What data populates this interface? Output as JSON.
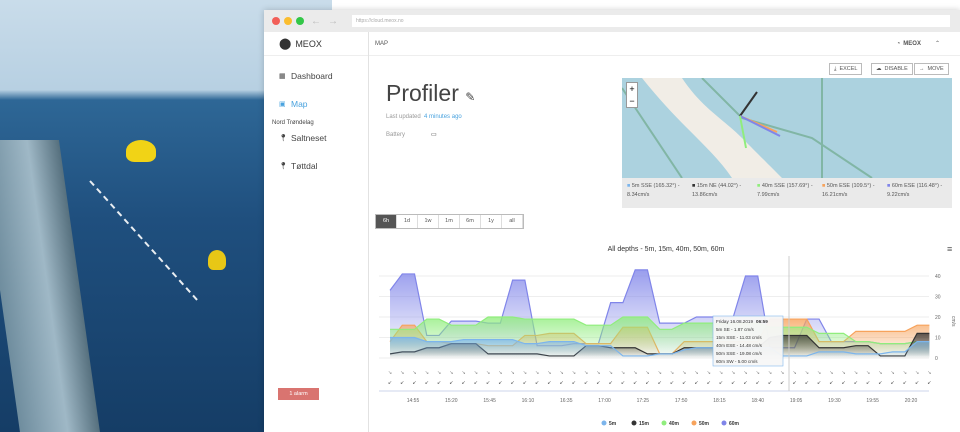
{
  "browser": {
    "url": "https://cloud.meox.no"
  },
  "sidebar": {
    "logo": "MEOX",
    "items": [
      {
        "label": "Dashboard",
        "icon": "grid-icon"
      },
      {
        "label": "Map",
        "icon": "map-icon",
        "active": true
      }
    ],
    "group": "Nord Trøndelag",
    "locations": [
      {
        "label": "Saltneset"
      },
      {
        "label": "Tøttdal"
      }
    ],
    "alarm": "1 alarm"
  },
  "topbar": {
    "breadcrumb": "MAP",
    "user": "MEOX"
  },
  "toolbar": {
    "excel": "EXCEL",
    "disable": "DISABLE",
    "move": "MOVE"
  },
  "device": {
    "title": "Profiler",
    "last_updated_label": "Last updated",
    "last_updated_value": "4 minutes ago",
    "battery_label": "Battery"
  },
  "map_legend": [
    {
      "text": "5m SSE (165.32°) - 8.34cm/s",
      "color": "#7cb5ec"
    },
    {
      "text": "15m NE (44.02°) - 13.86cm/s",
      "color": "#333333"
    },
    {
      "text": "40m SSE (157.69°) - 7.99cm/s",
      "color": "#90ed7d"
    },
    {
      "text": "50m ESE (109.5°) - 16.21cm/s",
      "color": "#f7a35c"
    },
    {
      "text": "60m ESE (116.48°) - 9.22cm/s",
      "color": "#8085e9"
    }
  ],
  "ranges": [
    "6h",
    "1d",
    "1w",
    "1m",
    "6m",
    "1y",
    "all"
  ],
  "chart_data": {
    "type": "line",
    "title": "All depths - 5m, 15m, 40m, 50m, 60m",
    "ylabel": "cm/s",
    "ylim": [
      0,
      45
    ],
    "yticks": [
      0,
      10,
      20,
      30,
      40
    ],
    "xticks": [
      "14:55",
      "15:20",
      "15:45",
      "16:10",
      "16:35",
      "17:00",
      "17:25",
      "17:50",
      "18:15",
      "18:40",
      "19:05",
      "19:30",
      "19:55",
      "20:20"
    ],
    "x": [
      "14:40",
      "14:48",
      "14:56",
      "15:04",
      "15:12",
      "15:20",
      "15:28",
      "15:36",
      "15:44",
      "15:52",
      "16:00",
      "16:08",
      "16:16",
      "16:24",
      "16:32",
      "16:40",
      "16:48",
      "16:56",
      "17:04",
      "17:12",
      "17:20",
      "17:28",
      "17:36",
      "17:44",
      "17:52",
      "18:00",
      "18:08",
      "18:16",
      "18:24",
      "18:32",
      "18:40",
      "18:48",
      "18:56",
      "19:04",
      "19:12",
      "19:20",
      "19:28",
      "19:36",
      "19:44",
      "19:52",
      "20:00",
      "20:08",
      "20:16",
      "20:24",
      "20:32"
    ],
    "series": [
      {
        "name": "5m",
        "color": "#7cb5ec",
        "values": [
          10,
          10,
          10,
          8,
          8,
          8,
          9,
          9,
          9,
          9,
          9,
          7,
          7,
          8,
          8,
          8,
          6,
          6,
          6,
          1,
          1,
          1,
          2,
          2,
          4,
          5,
          5,
          5,
          5,
          5,
          5,
          5,
          1,
          1,
          1,
          3,
          3,
          3,
          2,
          2,
          2,
          3,
          3,
          8,
          8
        ]
      },
      {
        "name": "15m",
        "color": "#333333",
        "values": [
          2,
          3,
          3,
          5,
          5,
          7,
          7,
          7,
          2,
          2,
          2,
          2,
          2,
          1,
          1,
          1,
          6,
          6,
          5,
          5,
          5,
          2,
          2,
          2,
          5,
          5,
          5,
          5,
          5,
          5,
          5,
          10,
          11,
          11,
          11,
          5,
          5,
          5,
          6,
          6,
          1,
          1,
          1,
          12,
          12
        ]
      },
      {
        "name": "40m",
        "color": "#90ed7d",
        "values": [
          14,
          14,
          14,
          19,
          19,
          16,
          16,
          16,
          20,
          20,
          20,
          19,
          19,
          19,
          19,
          19,
          16,
          16,
          16,
          20,
          20,
          20,
          14,
          14,
          17,
          17,
          17,
          17,
          17,
          17,
          17,
          15,
          15,
          15,
          15,
          12,
          12,
          12,
          8,
          8,
          7,
          7,
          7,
          8,
          8
        ]
      },
      {
        "name": "50m",
        "color": "#f7a35c",
        "values": [
          8,
          16,
          16,
          8,
          8,
          7,
          7,
          7,
          6,
          6,
          6,
          11,
          11,
          12,
          12,
          12,
          7,
          7,
          7,
          15,
          15,
          15,
          2,
          2,
          8,
          8,
          8,
          8,
          8,
          8,
          8,
          19,
          19,
          19,
          19,
          8,
          8,
          8,
          13,
          13,
          13,
          13,
          13,
          16,
          16
        ]
      },
      {
        "name": "60m",
        "color": "#8085e9",
        "values": [
          33,
          41,
          41,
          11,
          11,
          18,
          18,
          18,
          17,
          17,
          38,
          38,
          6,
          6,
          6,
          7,
          7,
          7,
          27,
          27,
          43,
          43,
          17,
          17,
          17,
          20,
          20,
          20,
          20,
          40,
          40,
          5,
          5,
          5,
          19,
          19,
          8,
          8,
          8,
          8,
          7,
          7,
          7,
          8,
          8
        ]
      }
    ],
    "tooltip": {
      "date": "Friday 16.08.2019",
      "time": "06:59",
      "lines": [
        "5m SE - 1.87 cm/s",
        "15m SSE - 11.03 cm/s",
        "40m ESE - 14.48 cm/s",
        "50m SSE - 19.08 cm/s",
        "60m SW - 5.00 cm/s"
      ]
    },
    "legend": "bottom"
  }
}
